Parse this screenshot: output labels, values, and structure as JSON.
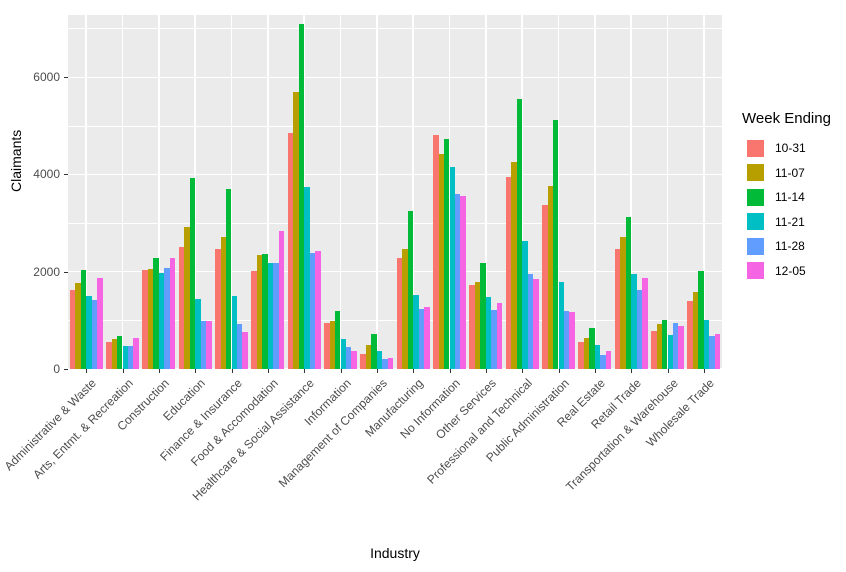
{
  "chart_data": {
    "type": "bar",
    "title": "",
    "xlabel": "Industry",
    "ylabel": "Claimants",
    "ylim": [
      0,
      7280
    ],
    "yticks": [
      0,
      2000,
      4000,
      6000
    ],
    "minor_gridlines": [
      1000,
      3000,
      5000,
      7000
    ],
    "grid": true,
    "panel_bg": "#EBEBEB",
    "grid_color": "#FFFFFF",
    "legend_title": "Week Ending",
    "legend_position": "right",
    "categories": [
      "Administrative & Waste",
      "Arts, Entmt. & Recreation",
      "Construction",
      "Education",
      "Finance & Insurance",
      "Food & Accomodation",
      "Healthcare & Social Assistance",
      "Information",
      "Management of Companies",
      "Manufacturing",
      "No Information",
      "Other Services",
      "Professional and Technical",
      "Public Administration",
      "Real Estate",
      "Retail Trade",
      "Transportation & Warehouse",
      "Wholesale Trade"
    ],
    "series": [
      {
        "name": "10-31",
        "color": "#F8766D",
        "values": [
          1620,
          560,
          2030,
          2510,
          2460,
          2020,
          4850,
          940,
          310,
          2280,
          4810,
          1720,
          3950,
          3370,
          560,
          2470,
          790,
          1390
        ]
      },
      {
        "name": "11-07",
        "color": "#B79F00",
        "values": [
          1770,
          620,
          2050,
          2920,
          2710,
          2340,
          5690,
          980,
          500,
          2460,
          4430,
          1780,
          4260,
          3760,
          640,
          2720,
          930,
          1590
        ]
      },
      {
        "name": "11-14",
        "color": "#00BA38",
        "values": [
          2030,
          670,
          2290,
          3930,
          3710,
          2370,
          7090,
          1200,
          720,
          3250,
          4730,
          2190,
          5560,
          5130,
          850,
          3120,
          1010,
          2020
        ]
      },
      {
        "name": "11-21",
        "color": "#00BFC4",
        "values": [
          1500,
          470,
          1980,
          1430,
          1500,
          2190,
          3740,
          620,
          370,
          1520,
          4150,
          1480,
          2630,
          1780,
          490,
          1960,
          700,
          1000
        ]
      },
      {
        "name": "11-28",
        "color": "#619CFF",
        "values": [
          1410,
          470,
          2080,
          990,
          930,
          2190,
          2380,
          450,
          210,
          1230,
          3590,
          1210,
          1960,
          1200,
          290,
          1620,
          940,
          680
        ]
      },
      {
        "name": "12-05",
        "color": "#F564E3",
        "values": [
          1880,
          640,
          2280,
          990,
          770,
          2840,
          2430,
          360,
          220,
          1280,
          3560,
          1350,
          1850,
          1180,
          360,
          1870,
          880,
          720
        ]
      }
    ]
  }
}
